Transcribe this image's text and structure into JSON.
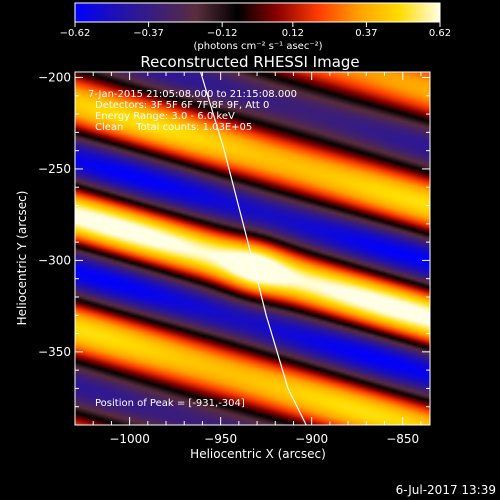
{
  "chart_data": {
    "type": "heatmap",
    "title": "Reconstructed RHESSI Image",
    "xlabel": "Heliocentric X (arcsec)",
    "ylabel": "Heliocentric Y (arcsec)",
    "xlim": [
      -1030,
      -835
    ],
    "ylim": [
      -390,
      -197
    ],
    "x_ticks": [
      -1000,
      -950,
      -900,
      -850
    ],
    "x_tick_labels": [
      "−1000",
      "−950",
      "−900",
      "−850"
    ],
    "y_ticks": [
      -200,
      -250,
      -300,
      -350
    ],
    "y_tick_labels": [
      "−200",
      "−250",
      "−300",
      "−350"
    ],
    "colorbar": {
      "min": -0.62,
      "max": 0.62,
      "ticks": [
        -0.62,
        -0.37,
        -0.12,
        0.12,
        0.37,
        0.62
      ],
      "tick_labels": [
        "−0.62",
        "−0.37",
        "−0.12",
        "0.12",
        "0.37",
        "0.62"
      ],
      "unit_label": "(photons cm⁻² s⁻¹ asec⁻²)",
      "colors": [
        "#0000ff",
        "#1e10b4",
        "#3c1e78",
        "#5a2d3c",
        "#000000",
        "#8c0000",
        "#ff3c00",
        "#ffa000",
        "#ffdc00",
        "#ffffe6"
      ]
    },
    "annotations": [
      "7-Jan-2015 21:05:08.000 to 21:15:08.000",
      "Detectors: 3F 5F 6F 7F 8F 9F, Att 0",
      "Energy Range: 3.0 - 6.0 keV",
      "Clean    Total counts: 1.03E+05"
    ],
    "peak_label": "Position of Peak = [-931,-304]",
    "peak": [
      -931,
      -304
    ],
    "limb_curve": [
      [
        -961,
        -197
      ],
      [
        -948,
        -240
      ],
      [
        -935,
        -290
      ],
      [
        -925,
        -330
      ],
      [
        -913,
        -370
      ],
      [
        -903,
        -390
      ]
    ],
    "pattern": {
      "stripe_angle_deg": 16,
      "stripe_period_arcsec": 60,
      "center": [
        -931,
        -304
      ]
    }
  },
  "timestamp": "6-Jul-2017 13:39"
}
